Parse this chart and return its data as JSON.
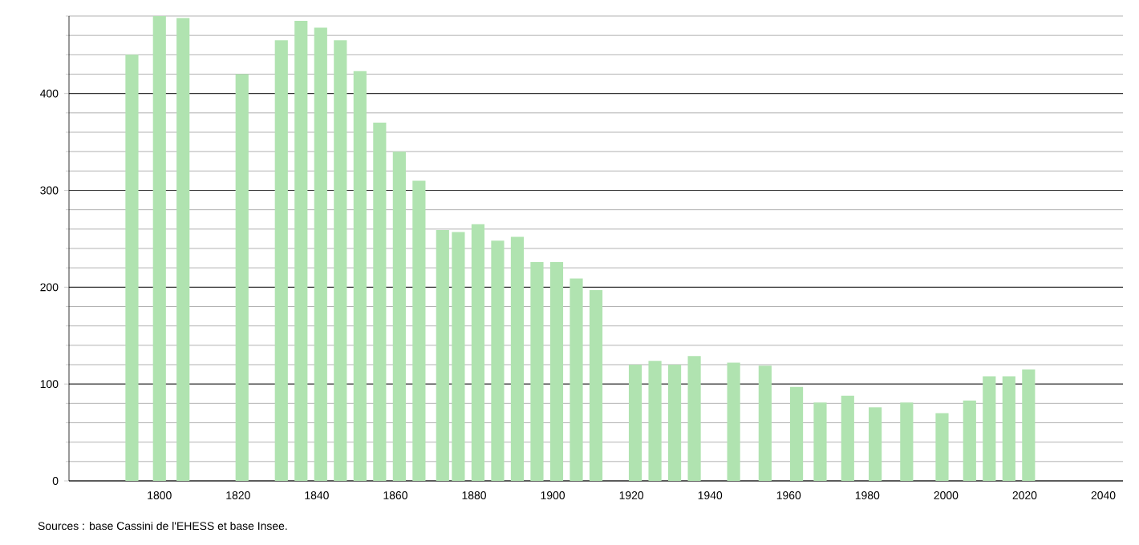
{
  "chart_data": {
    "type": "bar",
    "color": "#b0e3b0",
    "x": [
      1793,
      1800,
      1806,
      1821,
      1831,
      1836,
      1841,
      1846,
      1851,
      1856,
      1861,
      1866,
      1872,
      1876,
      1881,
      1886,
      1891,
      1896,
      1901,
      1906,
      1911,
      1921,
      1926,
      1931,
      1936,
      1946,
      1954,
      1962,
      1968,
      1975,
      1982,
      1990,
      1999,
      2006,
      2011,
      2016,
      2021
    ],
    "values": [
      440,
      480,
      478,
      420,
      455,
      475,
      468,
      455,
      423,
      370,
      340,
      310,
      259,
      257,
      265,
      248,
      252,
      226,
      226,
      209,
      197,
      120,
      124,
      120,
      129,
      122,
      119,
      97,
      81,
      88,
      76,
      81,
      70,
      83,
      108,
      108,
      115
    ],
    "xlim": [
      1777,
      2045
    ],
    "xticks": [
      1800,
      1820,
      1840,
      1860,
      1880,
      1900,
      1920,
      1940,
      1960,
      1980,
      2000,
      2020,
      2040
    ],
    "ylim": [
      0,
      480
    ],
    "yticks": [
      0,
      {
        "value": 20,
        "label": null
      },
      {
        "value": 40,
        "label": null
      },
      {
        "value": 60,
        "label": null
      },
      {
        "value": 80,
        "label": null
      },
      100,
      {
        "value": 120,
        "label": null
      },
      {
        "value": 140,
        "label": null
      },
      {
        "value": 160,
        "label": null
      },
      {
        "value": 180,
        "label": null
      },
      200,
      {
        "value": 220,
        "label": null
      },
      {
        "value": 240,
        "label": null
      },
      {
        "value": 260,
        "label": null
      },
      {
        "value": 280,
        "label": null
      },
      300,
      {
        "value": 320,
        "label": null
      },
      {
        "value": 340,
        "label": null
      },
      {
        "value": 360,
        "label": null
      },
      {
        "value": 380,
        "label": null
      },
      400,
      {
        "value": 420,
        "label": null
      },
      {
        "value": 440,
        "label": null
      },
      {
        "value": 460,
        "label": null
      },
      {
        "value": 480,
        "label": null
      }
    ],
    "grid": "y",
    "annotations": [
      "Sources : base Cassini de l'EHESS et base Insee."
    ]
  }
}
